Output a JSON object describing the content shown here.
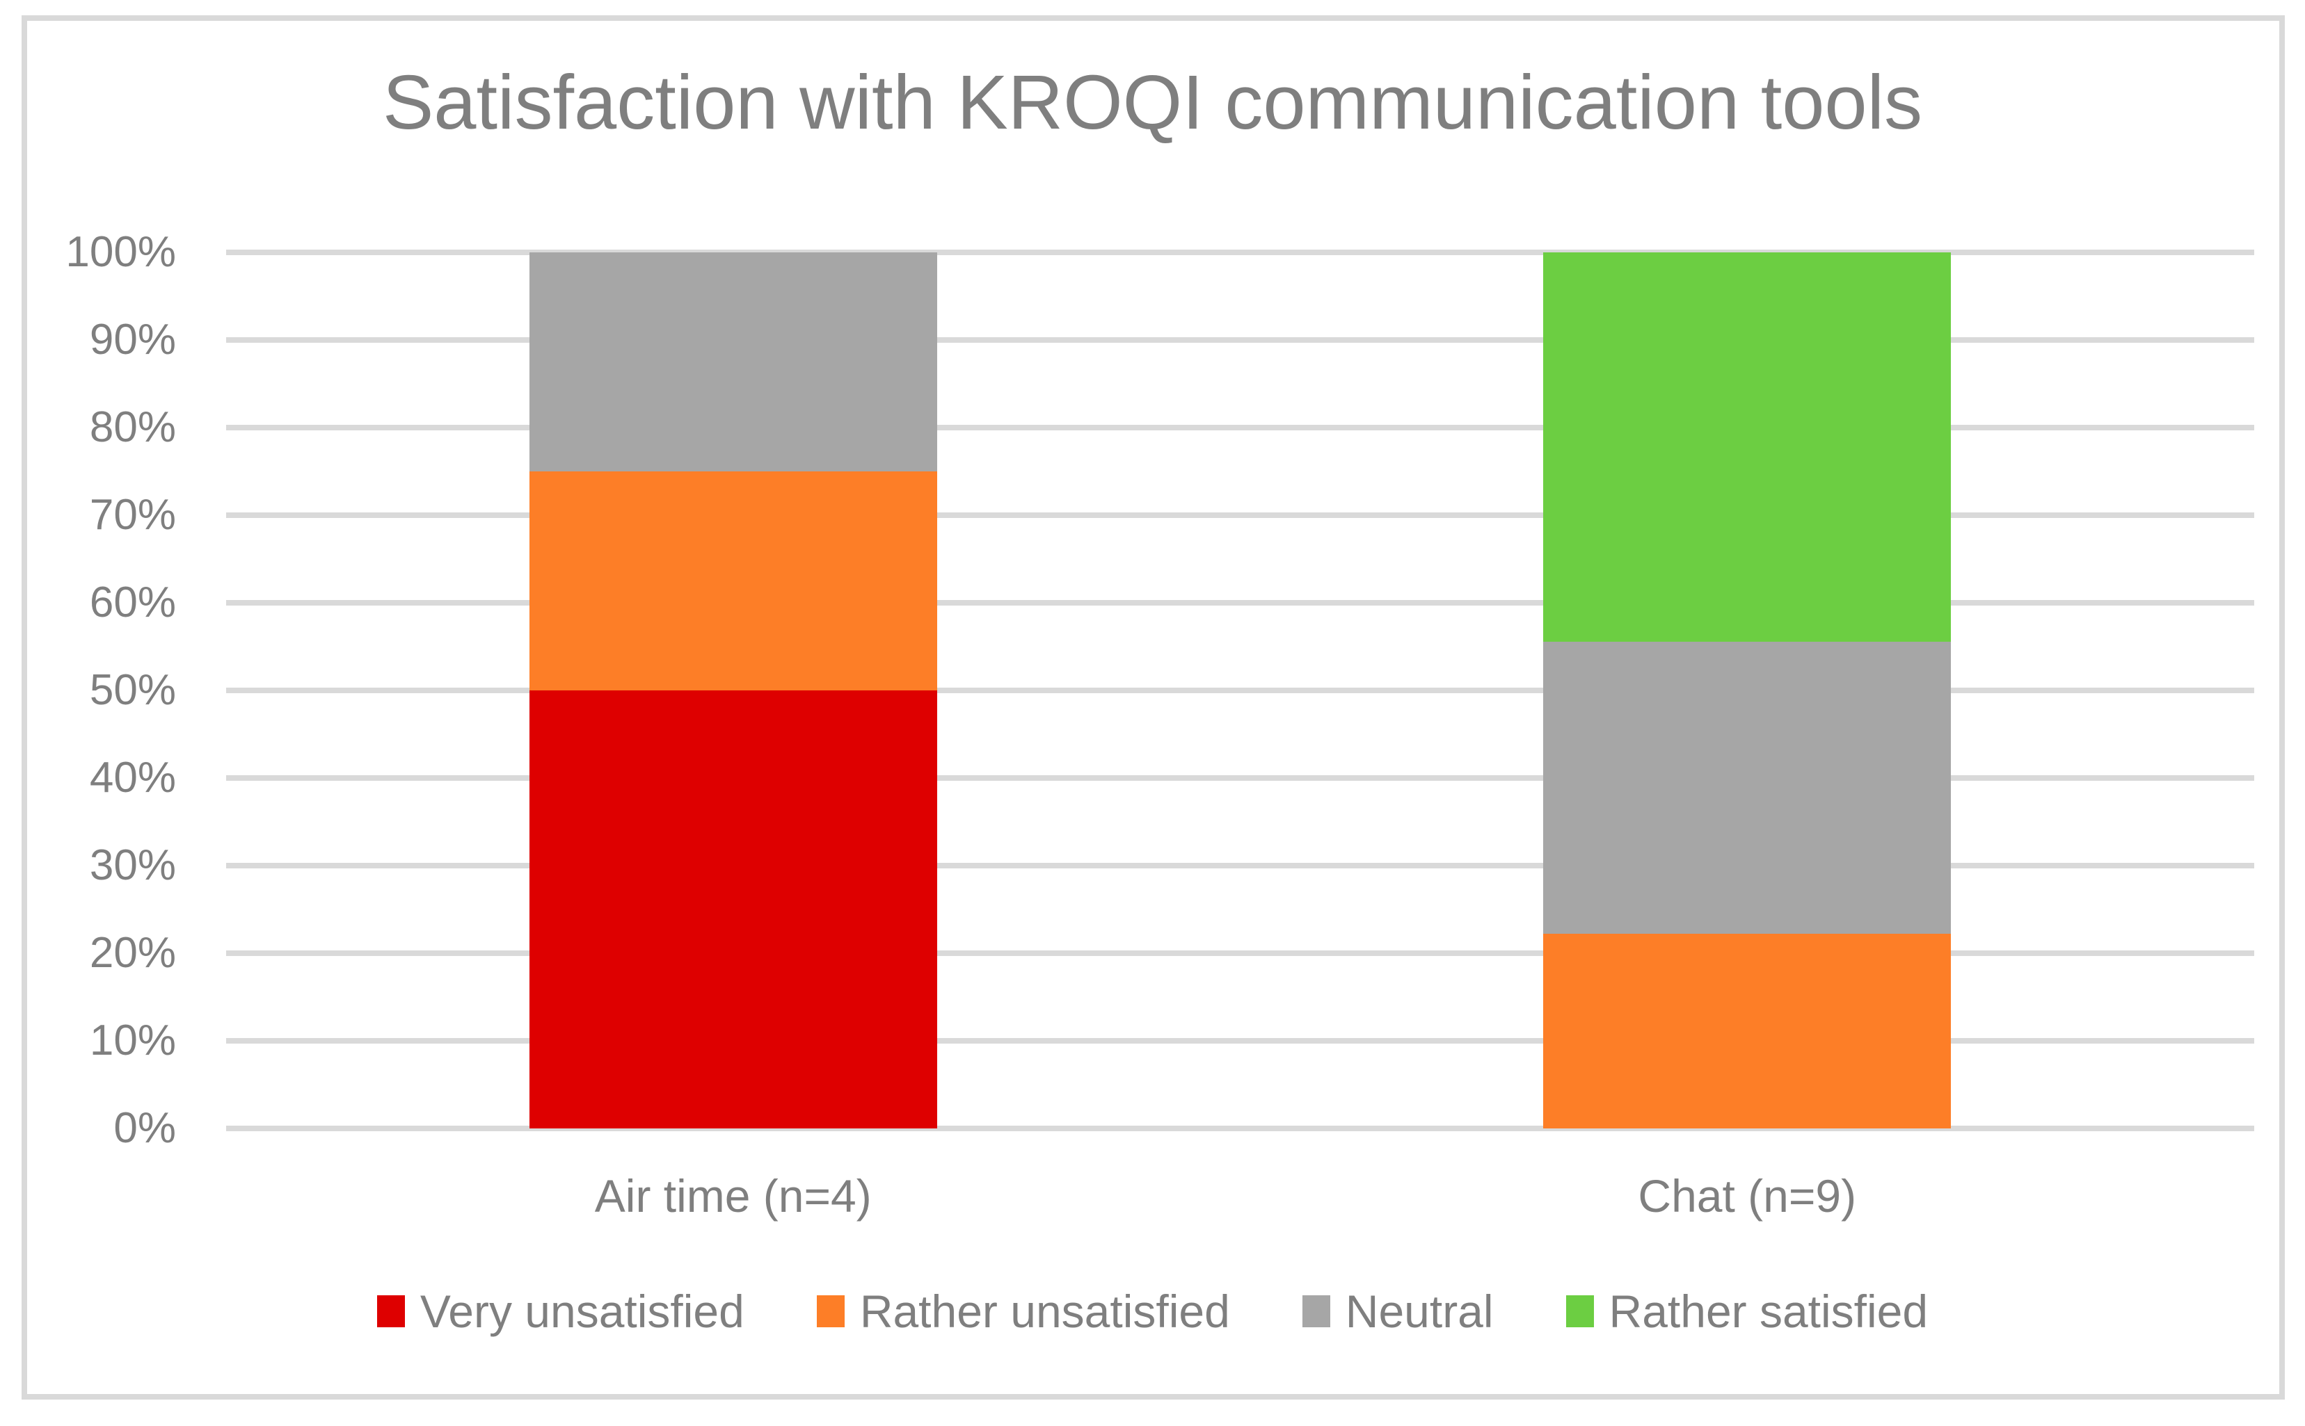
{
  "frame": {
    "border_color": "#D9D9D9",
    "background": "#FFFFFF"
  },
  "chart_data": {
    "type": "bar",
    "variant": "stacked-100-percent-column",
    "title": "Satisfaction with KROQI communication tools",
    "categories": [
      "Air time (n=4)",
      "Chat (n=9)"
    ],
    "series": [
      {
        "name": "Very unsatisfied",
        "color": "#DE0000",
        "values": [
          50,
          0
        ]
      },
      {
        "name": "Rather unsatisfied",
        "color": "#FD7E27",
        "values": [
          25,
          22.22
        ]
      },
      {
        "name": "Neutral",
        "color": "#A6A6A6",
        "values": [
          25,
          33.33
        ]
      },
      {
        "name": "Rather satisfied",
        "color": "#6CCE42",
        "values": [
          0,
          44.45
        ]
      }
    ],
    "xlabel": "",
    "ylabel": "",
    "ylim": [
      0,
      100
    ],
    "y_ticks": [
      "100%",
      "90%",
      "80%",
      "70%",
      "60%",
      "50%",
      "40%",
      "30%",
      "20%",
      "10%",
      "0%"
    ],
    "grid": true,
    "gridline_color": "#D9D9D9",
    "text_color": "#7F7F7F",
    "title_color": "#7F7F7F",
    "legend_position": "bottom"
  }
}
